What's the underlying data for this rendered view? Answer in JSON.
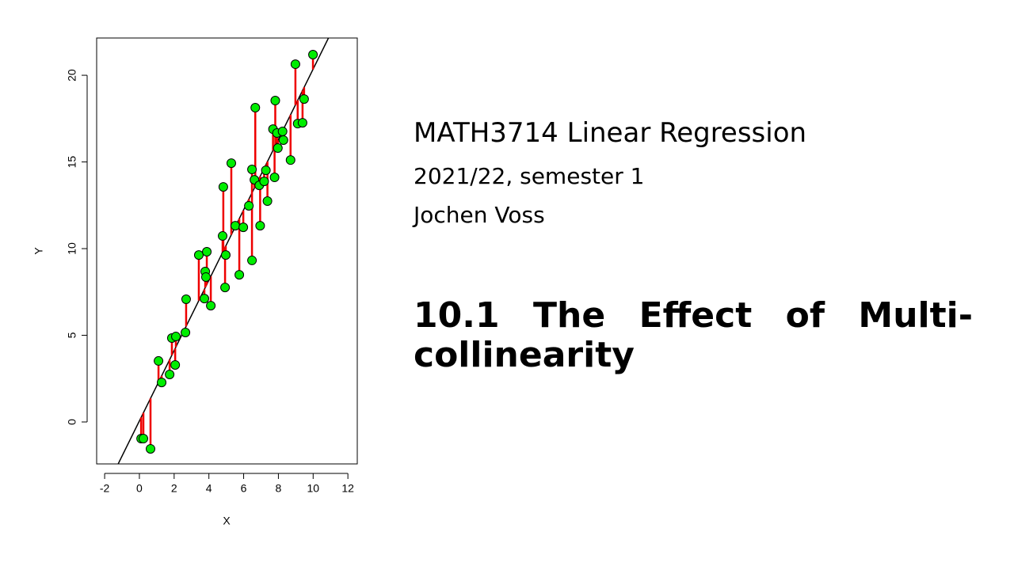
{
  "chart_data": {
    "type": "scatter",
    "x_label": "X",
    "y_label": "Y",
    "x": [
      0.1,
      0.23,
      0.64,
      1.1,
      1.28,
      1.74,
      1.87,
      2.1,
      2.06,
      2.65,
      2.69,
      3.42,
      3.79,
      3.88,
      3.83,
      3.74,
      4.11,
      4.79,
      4.83,
      4.97,
      4.93,
      5.29,
      5.52,
      5.75,
      5.98,
      6.3,
      6.48,
      6.48,
      6.62,
      6.67,
      6.9,
      6.95,
      7.18,
      7.28,
      7.37,
      7.69,
      7.82,
      7.78,
      7.92,
      7.97,
      8.24,
      8.29,
      8.7,
      8.98,
      9.11,
      9.39,
      9.48,
      9.99
    ],
    "series": [
      {
        "color": "#00ee00",
        "values": [
          -0.96,
          -0.96,
          -1.55,
          3.52,
          2.28,
          2.74,
          4.84,
          4.93,
          3.29,
          5.16,
          7.08,
          9.63,
          8.68,
          9.82,
          8.36,
          7.12,
          6.71,
          10.73,
          13.56,
          9.63,
          7.76,
          14.93,
          11.32,
          8.49,
          11.23,
          12.47,
          14.57,
          9.32,
          13.97,
          18.13,
          13.65,
          11.32,
          13.88,
          14.52,
          12.74,
          16.89,
          18.54,
          14.11,
          16.67,
          15.8,
          16.76,
          16.26,
          15.11,
          20.64,
          17.21,
          17.26,
          18.63,
          21.19
        ]
      }
    ],
    "fit": {
      "intercept": 0.06,
      "slope": 2.03,
      "color": "#000000",
      "residual_color": "#ee0000"
    },
    "xlim": [
      -2.46,
      12.54
    ],
    "ylim": [
      -2.42,
      22.15
    ],
    "xticks": [
      -2,
      0,
      2,
      4,
      6,
      8,
      10,
      12
    ],
    "yticks": [
      0,
      5,
      10,
      15,
      20
    ],
    "grid": false
  },
  "slide": {
    "course": "MATH3714 Linear Regression",
    "term": "2021/22, semester 1",
    "author": "Jochen Voss",
    "heading": "10.1 The Effect of Multi-collinearity"
  }
}
